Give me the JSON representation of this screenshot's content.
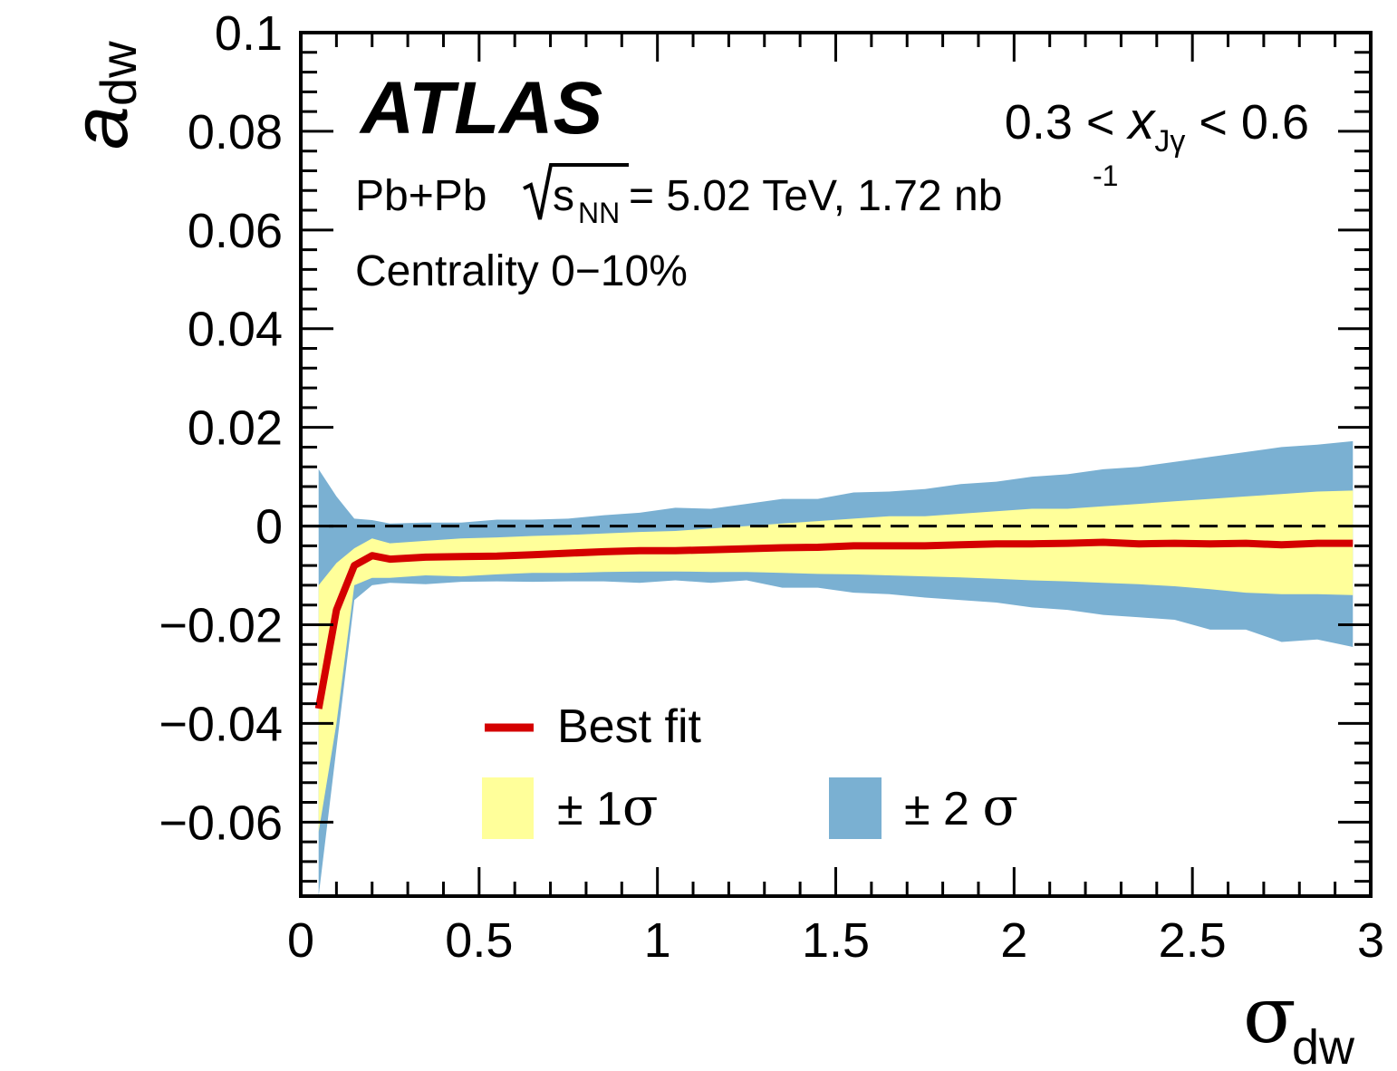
{
  "chart_data": {
    "type": "area",
    "xlabel": {
      "main": "σ",
      "sub": "dw"
    },
    "ylabel": {
      "main": "a",
      "sub": "dw"
    },
    "xlim": [
      0,
      3.0
    ],
    "ylim": [
      -0.075,
      0.1
    ],
    "x_ticks": [
      0,
      0.5,
      1,
      1.5,
      2,
      2.5,
      3
    ],
    "x_tick_labels": [
      "0",
      "0.5",
      "1",
      "1.5",
      "2",
      "2.5",
      "3"
    ],
    "y_ticks": [
      -0.06,
      -0.04,
      -0.02,
      0,
      0.02,
      0.04,
      0.06,
      0.08,
      0.1
    ],
    "y_tick_labels": [
      "−0.06",
      "−0.04",
      "−0.02",
      "0",
      "0.02",
      "0.04",
      "0.06",
      "0.08",
      "0.1"
    ],
    "reference_line": {
      "y": 0,
      "style": "dashed"
    },
    "annotations": {
      "experiment": "ATLAS",
      "xj_range": {
        "prefix": "0.3 < ",
        "var": "x",
        "sub": "Jγ",
        "suffix": " < 0.6"
      },
      "collision": {
        "part1": "Pb+Pb ",
        "sqrt_s": "s",
        "sqrt_sub": "NN",
        "part2": " = 5.02 TeV, 1.72 nb",
        "sup": "-1"
      },
      "centrality": "Centrality 0−10%"
    },
    "legend": {
      "placement": "bottom-center",
      "entries": [
        {
          "label": "Best fit"
        },
        {
          "label": "± 1σ",
          "text": "± 1",
          "sigma": "σ"
        },
        {
          "label": "± 2 σ",
          "text": "± 2 ",
          "sigma": "σ"
        }
      ]
    },
    "colors": {
      "best_fit": "#d40000",
      "one_sigma": "#ffff9a",
      "two_sigma": "#7ab0d2"
    },
    "x": [
      0.05,
      0.1,
      0.15,
      0.2,
      0.25,
      0.35,
      0.45,
      0.55,
      0.65,
      0.75,
      0.85,
      0.95,
      1.05,
      1.15,
      1.25,
      1.35,
      1.45,
      1.55,
      1.65,
      1.75,
      1.85,
      1.95,
      2.05,
      2.15,
      2.25,
      2.35,
      2.45,
      2.55,
      2.65,
      2.75,
      2.85,
      2.95
    ],
    "series": [
      {
        "name": "Best fit",
        "values": [
          -0.037,
          -0.017,
          -0.008,
          -0.006,
          -0.0067,
          -0.0063,
          -0.0062,
          -0.0061,
          -0.0058,
          -0.0055,
          -0.0052,
          -0.005,
          -0.005,
          -0.0048,
          -0.0046,
          -0.0044,
          -0.0043,
          -0.004,
          -0.004,
          -0.004,
          -0.0038,
          -0.0036,
          -0.0036,
          -0.0035,
          -0.0033,
          -0.0036,
          -0.0035,
          -0.0036,
          -0.0035,
          -0.0038,
          -0.0035,
          -0.0035
        ]
      },
      {
        "name": "± 1σ",
        "upper": [
          -0.012,
          -0.0075,
          -0.0045,
          -0.0025,
          -0.0035,
          -0.003,
          -0.0025,
          -0.0023,
          -0.002,
          -0.0018,
          -0.0015,
          -0.0012,
          -0.001,
          -0.0005,
          0.0,
          0.0005,
          0.001,
          0.0015,
          0.002,
          0.002,
          0.0025,
          0.003,
          0.0035,
          0.0035,
          0.004,
          0.0045,
          0.005,
          0.0055,
          0.006,
          0.0065,
          0.007,
          0.0072
        ],
        "lower": [
          -0.062,
          -0.04,
          -0.012,
          -0.0105,
          -0.0105,
          -0.01,
          -0.0102,
          -0.0098,
          -0.0095,
          -0.0095,
          -0.0093,
          -0.0092,
          -0.0092,
          -0.0093,
          -0.0093,
          -0.0095,
          -0.0097,
          -0.0098,
          -0.01,
          -0.0102,
          -0.0104,
          -0.0107,
          -0.011,
          -0.0112,
          -0.0115,
          -0.0118,
          -0.0122,
          -0.0128,
          -0.0135,
          -0.0138,
          -0.0138,
          -0.014
        ]
      },
      {
        "name": "± 2 σ",
        "upper": [
          0.0115,
          0.006,
          0.0015,
          0.0012,
          0.0005,
          0.0007,
          0.0007,
          0.0013,
          0.0013,
          0.0015,
          0.0022,
          0.0027,
          0.0037,
          0.0035,
          0.0045,
          0.0055,
          0.0055,
          0.0068,
          0.007,
          0.0075,
          0.0085,
          0.009,
          0.01,
          0.0105,
          0.0115,
          0.012,
          0.013,
          0.014,
          0.015,
          0.016,
          0.0165,
          0.0172
        ],
        "lower": [
          -0.075,
          -0.045,
          -0.015,
          -0.012,
          -0.0115,
          -0.0118,
          -0.0113,
          -0.0112,
          -0.0113,
          -0.0112,
          -0.0112,
          -0.0115,
          -0.011,
          -0.0115,
          -0.011,
          -0.0125,
          -0.0125,
          -0.0135,
          -0.0138,
          -0.0145,
          -0.015,
          -0.0155,
          -0.0165,
          -0.017,
          -0.018,
          -0.0185,
          -0.019,
          -0.021,
          -0.021,
          -0.0235,
          -0.023,
          -0.0245
        ]
      }
    ]
  }
}
